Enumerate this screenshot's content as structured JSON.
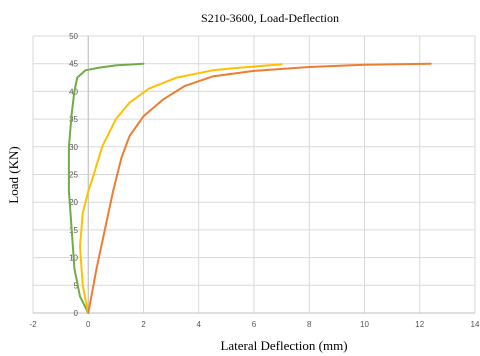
{
  "chart_data": {
    "type": "line",
    "title": "S210-3600, Load-Deflection",
    "xlabel": "Lateral Deflection (mm)",
    "ylabel": "Load (KN)",
    "xlim": [
      -2,
      14
    ],
    "ylim": [
      0,
      50
    ],
    "xticks": [
      -2,
      0,
      2,
      4,
      6,
      8,
      10,
      12,
      14
    ],
    "yticks": [
      0,
      5,
      10,
      15,
      20,
      25,
      30,
      35,
      40,
      45,
      50
    ],
    "grid": true,
    "legend": "none",
    "series": [
      {
        "color": "#70ad47",
        "points": [
          [
            0,
            0
          ],
          [
            -0.3,
            3
          ],
          [
            -0.5,
            8
          ],
          [
            -0.6,
            15
          ],
          [
            -0.7,
            22
          ],
          [
            -0.7,
            30
          ],
          [
            -0.6,
            36
          ],
          [
            -0.5,
            40
          ],
          [
            -0.4,
            42.5
          ],
          [
            -0.1,
            43.8
          ],
          [
            0.4,
            44.3
          ],
          [
            1.0,
            44.7
          ],
          [
            2.0,
            45.0
          ]
        ]
      },
      {
        "color": "#ffc000",
        "points": [
          [
            0,
            0
          ],
          [
            -0.2,
            5
          ],
          [
            -0.3,
            12
          ],
          [
            -0.2,
            18
          ],
          [
            0,
            22
          ],
          [
            0.2,
            25
          ],
          [
            0.5,
            30
          ],
          [
            1.0,
            35
          ],
          [
            1.5,
            38
          ],
          [
            2.2,
            40.5
          ],
          [
            3.2,
            42.5
          ],
          [
            4.5,
            43.8
          ],
          [
            5.5,
            44.3
          ],
          [
            6.3,
            44.6
          ],
          [
            7.0,
            44.9
          ]
        ]
      },
      {
        "color": "#ed7d31",
        "points": [
          [
            0,
            0
          ],
          [
            0.3,
            8
          ],
          [
            0.6,
            15
          ],
          [
            0.9,
            22
          ],
          [
            1.2,
            28
          ],
          [
            1.5,
            32
          ],
          [
            2.0,
            35.5
          ],
          [
            2.7,
            38.5
          ],
          [
            3.5,
            41
          ],
          [
            4.5,
            42.7
          ],
          [
            6.0,
            43.7
          ],
          [
            8.0,
            44.4
          ],
          [
            10.0,
            44.8
          ],
          [
            12.4,
            45.0
          ]
        ]
      }
    ]
  }
}
